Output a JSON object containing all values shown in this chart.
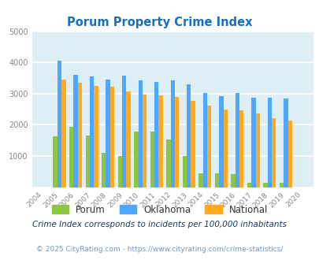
{
  "title": "Porum Property Crime Index",
  "years": [
    2004,
    2005,
    2006,
    2007,
    2008,
    2009,
    2010,
    2011,
    2012,
    2013,
    2014,
    2015,
    2016,
    2017,
    2018,
    2019,
    2020
  ],
  "porum": [
    0,
    1620,
    1930,
    1650,
    1100,
    1000,
    1780,
    1790,
    1520,
    1000,
    450,
    450,
    420,
    130,
    130,
    130,
    0
  ],
  "oklahoma": [
    0,
    4050,
    3600,
    3550,
    3450,
    3580,
    3420,
    3370,
    3430,
    3300,
    3020,
    2930,
    3010,
    2880,
    2880,
    2840,
    0
  ],
  "national": [
    0,
    3450,
    3360,
    3260,
    3220,
    3060,
    2960,
    2950,
    2900,
    2760,
    2610,
    2490,
    2460,
    2360,
    2200,
    2130,
    0
  ],
  "porum_color": "#8dc63f",
  "oklahoma_color": "#4da6ff",
  "national_color": "#ffaa22",
  "bg_color": "#deeef5",
  "ylim": [
    0,
    5000
  ],
  "yticks": [
    0,
    1000,
    2000,
    3000,
    4000,
    5000
  ],
  "grid_color": "#ffffff",
  "title_color": "#1a6fba",
  "subtitle": "Crime Index corresponds to incidents per 100,000 inhabitants",
  "footer": "© 2025 CityRating.com - https://www.cityrating.com/crime-statistics/",
  "subtitle_color": "#1a3a5c",
  "footer_color": "#7799bb",
  "tick_color": "#888888",
  "bar_width": 0.26
}
